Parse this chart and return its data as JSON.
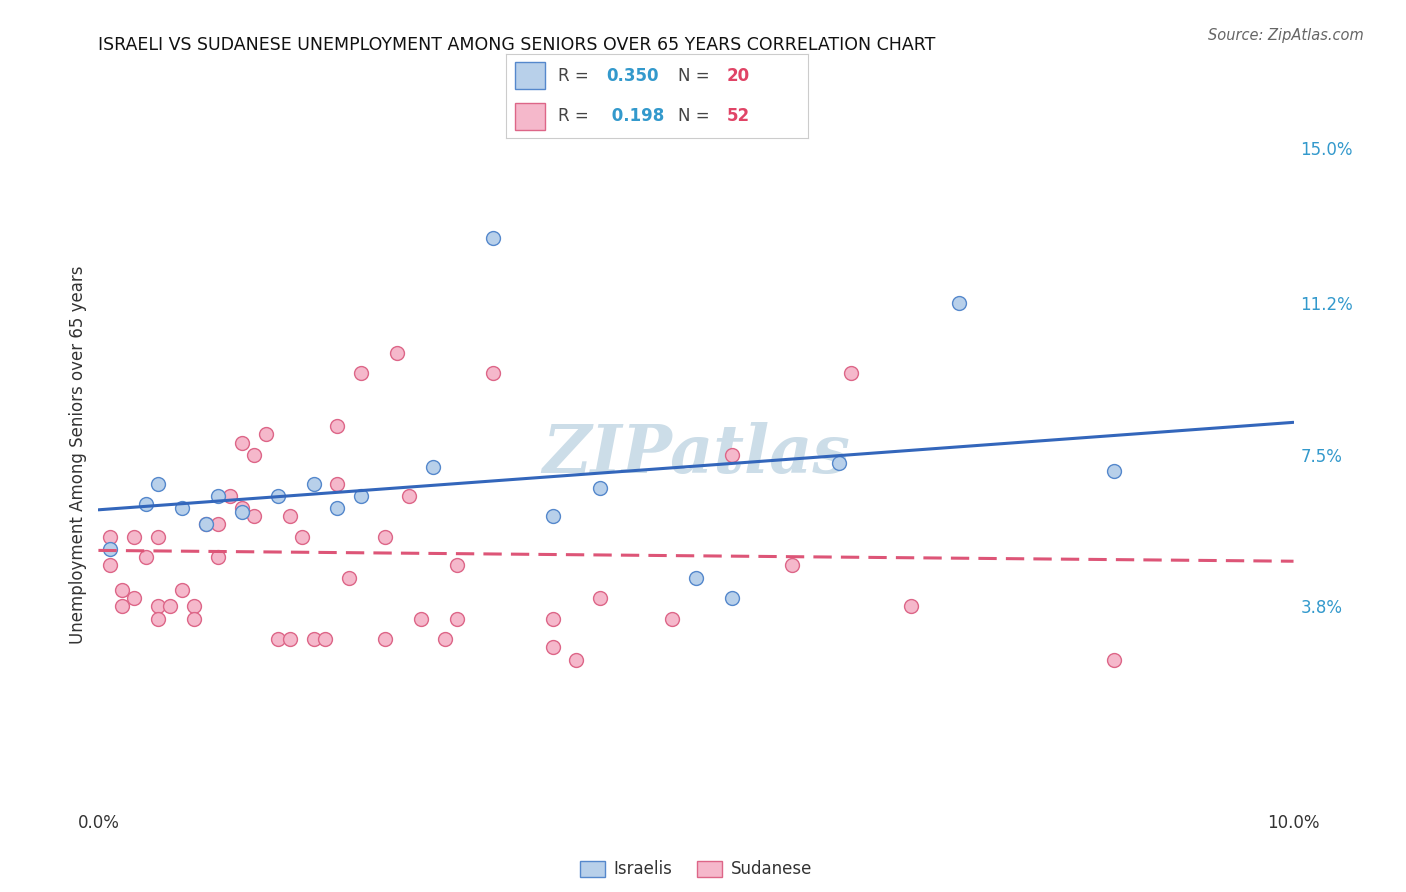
{
  "title": "ISRAELI VS SUDANESE UNEMPLOYMENT AMONG SENIORS OVER 65 YEARS CORRELATION CHART",
  "source": "Source: ZipAtlas.com",
  "ylabel": "Unemployment Among Seniors over 65 years",
  "xlim": [
    0.0,
    0.1
  ],
  "ylim": [
    -0.01,
    0.16
  ],
  "xticks": [
    0.0,
    0.02,
    0.04,
    0.06,
    0.08,
    0.1
  ],
  "xticklabels": [
    "0.0%",
    "",
    "",
    "",
    "",
    "10.0%"
  ],
  "yticks_right": [
    0.038,
    0.075,
    0.112,
    0.15
  ],
  "yticklabels_right": [
    "3.8%",
    "7.5%",
    "11.2%",
    "15.0%"
  ],
  "israeli_x": [
    0.001,
    0.004,
    0.005,
    0.007,
    0.009,
    0.01,
    0.012,
    0.015,
    0.018,
    0.02,
    0.022,
    0.028,
    0.033,
    0.038,
    0.042,
    0.05,
    0.053,
    0.062,
    0.072,
    0.085
  ],
  "israeli_y": [
    0.052,
    0.063,
    0.068,
    0.062,
    0.058,
    0.065,
    0.061,
    0.065,
    0.068,
    0.062,
    0.065,
    0.072,
    0.128,
    0.06,
    0.067,
    0.045,
    0.04,
    0.073,
    0.112,
    0.071
  ],
  "sudanese_x": [
    0.001,
    0.001,
    0.002,
    0.002,
    0.003,
    0.003,
    0.004,
    0.005,
    0.005,
    0.005,
    0.006,
    0.007,
    0.008,
    0.008,
    0.009,
    0.01,
    0.01,
    0.011,
    0.012,
    0.012,
    0.013,
    0.013,
    0.014,
    0.015,
    0.016,
    0.016,
    0.017,
    0.018,
    0.019,
    0.02,
    0.02,
    0.021,
    0.022,
    0.024,
    0.024,
    0.025,
    0.026,
    0.027,
    0.029,
    0.03,
    0.03,
    0.033,
    0.038,
    0.038,
    0.04,
    0.042,
    0.048,
    0.053,
    0.058,
    0.063,
    0.068,
    0.085
  ],
  "sudanese_y": [
    0.055,
    0.048,
    0.042,
    0.038,
    0.055,
    0.04,
    0.05,
    0.055,
    0.038,
    0.035,
    0.038,
    0.042,
    0.038,
    0.035,
    0.058,
    0.058,
    0.05,
    0.065,
    0.062,
    0.078,
    0.06,
    0.075,
    0.08,
    0.03,
    0.03,
    0.06,
    0.055,
    0.03,
    0.03,
    0.082,
    0.068,
    0.045,
    0.095,
    0.03,
    0.055,
    0.1,
    0.065,
    0.035,
    0.03,
    0.048,
    0.035,
    0.095,
    0.028,
    0.035,
    0.025,
    0.04,
    0.035,
    0.075,
    0.048,
    0.095,
    0.038,
    0.025
  ],
  "israeli_color": "#b8d0ea",
  "sudanese_color": "#f5b8cb",
  "israeli_edge_color": "#5588cc",
  "sudanese_edge_color": "#dd6688",
  "trend_israeli_color": "#3366bb",
  "trend_sudanese_color": "#dd5577",
  "background_color": "#ffffff",
  "grid_color": "#e0e0e0",
  "watermark_color": "#ccdde8",
  "marker_size": 100,
  "R_israeli": 0.35,
  "N_israeli": 20,
  "R_sudanese": 0.198,
  "N_sudanese": 52
}
